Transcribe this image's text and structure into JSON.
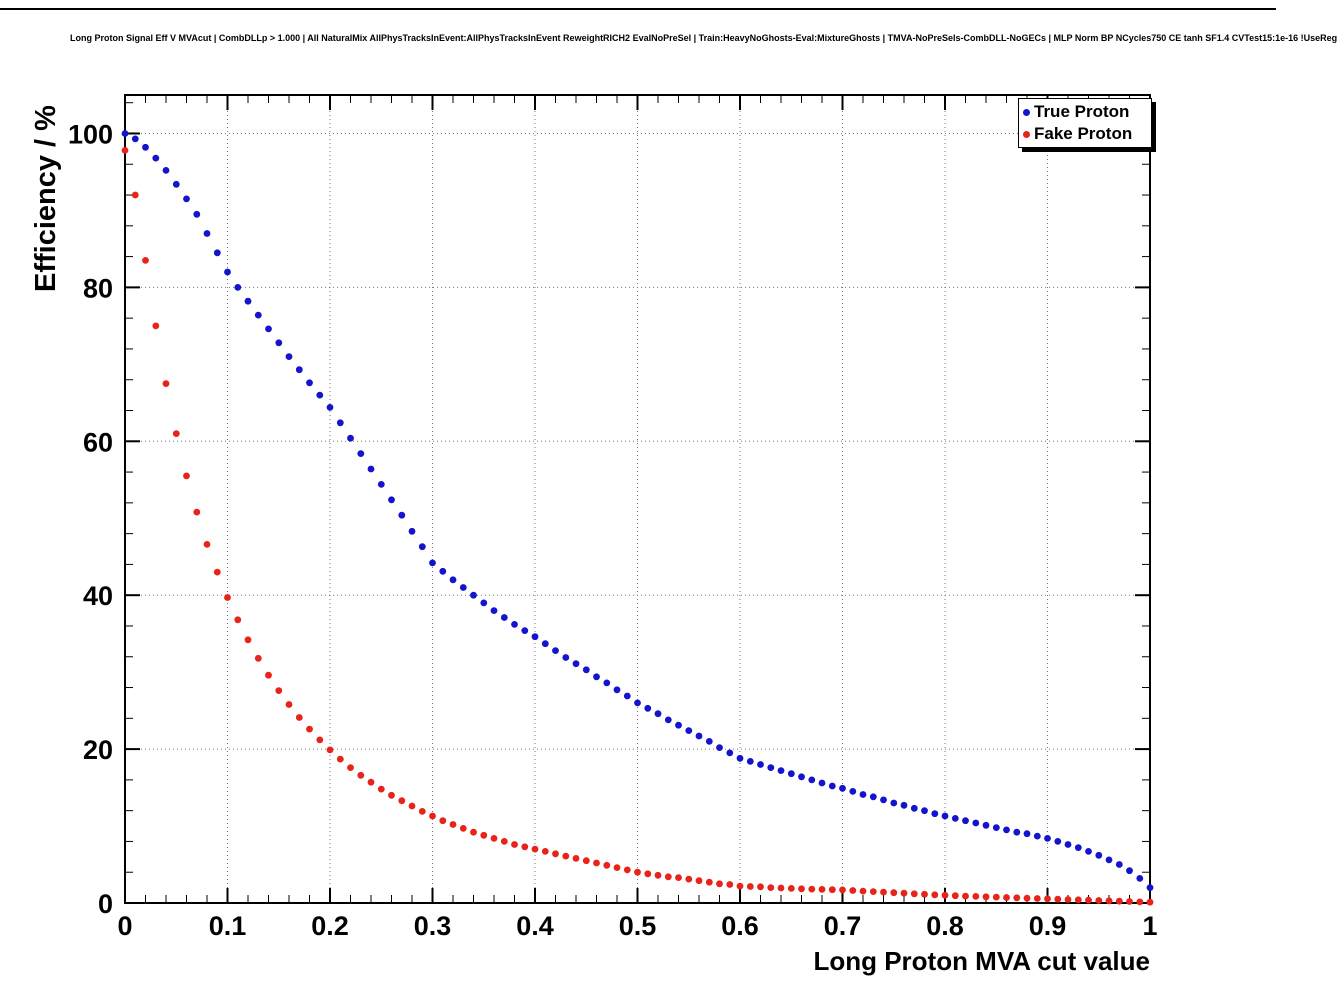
{
  "title": "Long Proton Signal Eff V MVAcut | CombDLLp > 1.000 | All NaturalMix AllPhysTracksInEvent:AllPhysTracksInEvent ReweightRICH2 EvalNoPreSel | Train:HeavyNoGhosts-Eval:MixtureGhosts | TMVA-NoPreSels-CombDLL-NoGECs | MLP Norm BP NCycles750 CE tanh SF1.4 CVTest15:1e-16 !UseReg",
  "chart_data": {
    "type": "scatter",
    "title": "Long Proton Signal Eff V MVAcut",
    "xlabel": "Long Proton MVA cut value",
    "ylabel": "Efficiency / %",
    "xlim": [
      0,
      1
    ],
    "ylim": [
      0,
      105
    ],
    "grid": true,
    "legend_position": "top-right",
    "x_ticks": [
      0,
      0.1,
      0.2,
      0.3,
      0.4,
      0.5,
      0.6,
      0.7,
      0.8,
      0.9,
      1
    ],
    "x_tick_labels": [
      "0",
      "0.1",
      "0.2",
      "0.3",
      "0.4",
      "0.5",
      "0.6",
      "0.7",
      "0.8",
      "0.9",
      "1"
    ],
    "y_ticks": [
      0,
      20,
      40,
      60,
      80,
      100
    ],
    "x_minor_step": 0.02,
    "y_minor_step": 4,
    "x": [
      0,
      0.01,
      0.02,
      0.03,
      0.04,
      0.05,
      0.06,
      0.07,
      0.08,
      0.09,
      0.1,
      0.11,
      0.12,
      0.13,
      0.14,
      0.15,
      0.16,
      0.17,
      0.18,
      0.19,
      0.2,
      0.21,
      0.22,
      0.23,
      0.24,
      0.25,
      0.26,
      0.27,
      0.28,
      0.29,
      0.3,
      0.31,
      0.32,
      0.33,
      0.34,
      0.35,
      0.36,
      0.37,
      0.38,
      0.39,
      0.4,
      0.41,
      0.42,
      0.43,
      0.44,
      0.45,
      0.46,
      0.47,
      0.48,
      0.49,
      0.5,
      0.51,
      0.52,
      0.53,
      0.54,
      0.55,
      0.56,
      0.57,
      0.58,
      0.59,
      0.6,
      0.61,
      0.62,
      0.63,
      0.64,
      0.65,
      0.66,
      0.67,
      0.68,
      0.69,
      0.7,
      0.71,
      0.72,
      0.73,
      0.74,
      0.75,
      0.76,
      0.77,
      0.78,
      0.79,
      0.8,
      0.81,
      0.82,
      0.83,
      0.84,
      0.85,
      0.86,
      0.87,
      0.88,
      0.89,
      0.9,
      0.91,
      0.92,
      0.93,
      0.94,
      0.95,
      0.96,
      0.97,
      0.98,
      0.99,
      1
    ],
    "series": [
      {
        "name": "True Proton",
        "color": "#1414cc",
        "values": [
          100,
          99.3,
          98.2,
          96.8,
          95.2,
          93.4,
          91.5,
          89.5,
          87,
          84.5,
          82,
          80,
          78.2,
          76.4,
          74.6,
          72.8,
          71,
          69.3,
          67.6,
          66,
          64.4,
          62.4,
          60.4,
          58.4,
          56.4,
          54.4,
          52.4,
          50.4,
          48.3,
          46.3,
          44.2,
          43.1,
          42,
          41,
          40,
          39,
          38,
          37.1,
          36.2,
          35.4,
          34.6,
          33.7,
          32.8,
          31.9,
          31.1,
          30.3,
          29.4,
          28.6,
          27.7,
          26.9,
          26,
          25.3,
          24.6,
          23.8,
          23.1,
          22.4,
          21.7,
          21,
          20.2,
          19.5,
          18.8,
          18.4,
          18,
          17.6,
          17.2,
          16.8,
          16.4,
          16,
          15.6,
          15.2,
          14.9,
          14.5,
          14.1,
          13.8,
          13.4,
          13,
          12.7,
          12.3,
          12,
          11.6,
          11.3,
          11,
          10.7,
          10.4,
          10.1,
          9.8,
          9.5,
          9.2,
          9,
          8.7,
          8.4,
          8,
          7.6,
          7.2,
          6.7,
          6.2,
          5.6,
          5,
          4.2,
          3.2,
          2
        ]
      },
      {
        "name": "Fake Proton",
        "color": "#e8231a",
        "values": [
          97.8,
          92,
          83.5,
          75,
          67.5,
          61,
          55.5,
          50.8,
          46.6,
          43,
          39.7,
          36.8,
          34.2,
          31.8,
          29.6,
          27.6,
          25.8,
          24.1,
          22.6,
          21.2,
          19.9,
          18.7,
          17.6,
          16.6,
          15.7,
          14.8,
          14,
          13.3,
          12.6,
          11.9,
          11.3,
          10.7,
          10.2,
          9.7,
          9.2,
          8.8,
          8.4,
          8,
          7.6,
          7.3,
          7,
          6.7,
          6.4,
          6.1,
          5.8,
          5.5,
          5.2,
          4.9,
          4.6,
          4.3,
          4,
          3.8,
          3.6,
          3.4,
          3.3,
          3.1,
          2.9,
          2.7,
          2.5,
          2.4,
          2.2,
          2.15,
          2.1,
          2,
          1.95,
          1.9,
          1.85,
          1.8,
          1.77,
          1.73,
          1.7,
          1.62,
          1.55,
          1.48,
          1.41,
          1.34,
          1.27,
          1.2,
          1.13,
          1.07,
          1,
          0.95,
          0.9,
          0.86,
          0.81,
          0.77,
          0.72,
          0.68,
          0.63,
          0.59,
          0.55,
          0.5,
          0.46,
          0.41,
          0.37,
          0.32,
          0.28,
          0.23,
          0.19,
          0.14,
          0.1
        ]
      }
    ]
  }
}
